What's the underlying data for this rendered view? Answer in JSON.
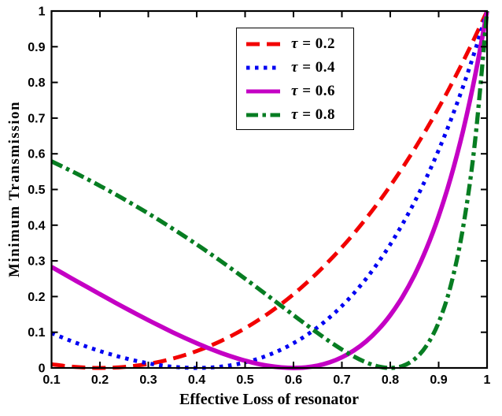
{
  "figure": {
    "background": "#ffffff"
  },
  "chart_data": {
    "type": "line",
    "title": "",
    "xlabel": "Effective Loss of resonator",
    "ylabel": "Minimum Transmission",
    "xlim": [
      0.1,
      1
    ],
    "ylim": [
      0,
      1
    ],
    "grid": false,
    "legend_position": "inside upper middle",
    "axis_color": "#000000",
    "x_tick_values": [
      0.1,
      0.2,
      0.3,
      0.4,
      0.5,
      0.6,
      0.7,
      0.8,
      0.9,
      1
    ],
    "x_tick_labels": [
      "0.1",
      "0.2",
      "0.3",
      "0.4",
      "0.5",
      "0.6",
      "0.7",
      "0.8",
      "0.9",
      "1"
    ],
    "y_tick_values": [
      0,
      0.1,
      0.2,
      0.3,
      0.4,
      0.5,
      0.6,
      0.7,
      0.8,
      0.9,
      1
    ],
    "y_tick_labels": [
      "0",
      "0.1",
      "0.2",
      "0.3",
      "0.4",
      "0.5",
      "0.6",
      "0.7",
      "0.8",
      "0.9",
      "1"
    ],
    "x": [
      0.1,
      0.125,
      0.15,
      0.175,
      0.2,
      0.225,
      0.25,
      0.275,
      0.3,
      0.325,
      0.35,
      0.375,
      0.4,
      0.425,
      0.45,
      0.475,
      0.5,
      0.525,
      0.55,
      0.575,
      0.6,
      0.625,
      0.65,
      0.675,
      0.7,
      0.725,
      0.75,
      0.775,
      0.8,
      0.825,
      0.85,
      0.875,
      0.9,
      0.925,
      0.95,
      0.975,
      1
    ],
    "series": [
      {
        "id": "tau-0.2",
        "name": "τ = 0.2",
        "symbol": "τ",
        "rest": " = 0.2",
        "color": "#f20000",
        "style": "dashed",
        "width": 5,
        "values": [
          0.0104,
          0.0059,
          0.0027,
          0.0007,
          0,
          0.0007,
          0.0028,
          0.0063,
          0.0113,
          0.0179,
          0.026,
          0.0358,
          0.0473,
          0.0605,
          0.0755,
          0.0923,
          0.1111,
          0.1319,
          0.1547,
          0.1795,
          0.2066,
          0.2359,
          0.2675,
          0.3015,
          0.338,
          0.377,
          0.4187,
          0.463,
          0.5102,
          0.5603,
          0.6133,
          0.6694,
          0.7287,
          0.7913,
          0.8573,
          0.9269,
          1
        ]
      },
      {
        "id": "tau-0.4",
        "name": "τ = 0.4",
        "symbol": "τ",
        "rest": " = 0.4",
        "color": "#0000f2",
        "style": "dotted",
        "width": 5,
        "values": [
          0.0977,
          0.0838,
          0.0707,
          0.0585,
          0.0473,
          0.037,
          0.0278,
          0.0197,
          0.0129,
          0.0074,
          0.0034,
          0.0009,
          0,
          0.0009,
          0.0037,
          0.0086,
          0.0156,
          0.025,
          0.037,
          0.0517,
          0.0693,
          0.09,
          0.1141,
          0.1419,
          0.1736,
          0.2095,
          0.25,
          0.2954,
          0.346,
          0.4024,
          0.4649,
          0.534,
          0.6104,
          0.6944,
          0.7869,
          0.8885,
          1
        ]
      },
      {
        "id": "tau-0.6",
        "name": "τ = 0.6",
        "symbol": "τ",
        "rest": " = 0.6",
        "color": "#c400c4",
        "style": "solid",
        "width": 5.7,
        "values": [
          0.2829,
          0.2637,
          0.2445,
          0.2255,
          0.2066,
          0.1879,
          0.1696,
          0.1515,
          0.1338,
          0.1167,
          0.1001,
          0.0843,
          0.0693,
          0.0552,
          0.0422,
          0.0306,
          0.0204,
          0.012,
          0.0056,
          0.0015,
          0,
          0.0016,
          0.0067,
          0.0159,
          0.0297,
          0.0489,
          0.0744,
          0.107,
          0.1479,
          0.1985,
          0.2603,
          0.3352,
          0.4253,
          0.5334,
          0.6625,
          0.8165,
          1
        ]
      },
      {
        "id": "tau-0.8",
        "name": "τ = 0.8",
        "symbol": "τ",
        "rest": " = 0.8",
        "color": "#077d22",
        "style": "dashdot",
        "width": 5.3,
        "values": [
          0.5789,
          0.5625,
          0.5456,
          0.5282,
          0.5102,
          0.4917,
          0.4727,
          0.453,
          0.4328,
          0.412,
          0.3906,
          0.3686,
          0.346,
          0.3228,
          0.2991,
          0.2748,
          0.25,
          0.2248,
          0.1993,
          0.1736,
          0.1479,
          0.1225,
          0.0977,
          0.0738,
          0.0517,
          0.0319,
          0.0156,
          0.0043,
          0,
          0.0054,
          0.0244,
          0.0625,
          0.1276,
          0.2311,
          0.3906,
          0.6327,
          1
        ]
      }
    ]
  }
}
